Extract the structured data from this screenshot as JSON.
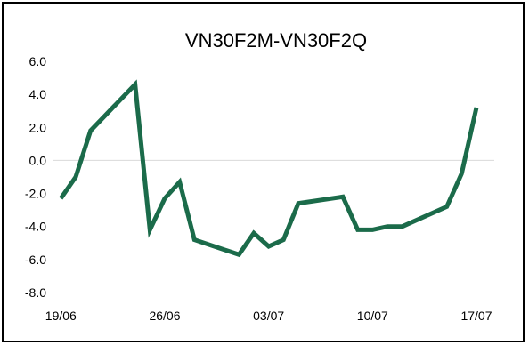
{
  "chart_data": {
    "type": "line",
    "title": "VN30F2M-VN30F2Q",
    "xlabel": "",
    "ylabel": "",
    "ylim": [
      -8.0,
      6.0
    ],
    "yticks": [
      "6.0",
      "4.0",
      "2.0",
      "0.0",
      "-2.0",
      "-4.0",
      "-6.0",
      "-8.0"
    ],
    "ytick_values": [
      6,
      4,
      2,
      0,
      -2,
      -4,
      -6,
      -8
    ],
    "xticks": [
      "19/06",
      "26/06",
      "03/07",
      "10/07",
      "17/07"
    ],
    "xtick_days": [
      0,
      7,
      14,
      21,
      28
    ],
    "xlim_days": [
      -0.5,
      29.2
    ],
    "grid": "zero-line only",
    "legend": "none",
    "line_color": "#1b6b4a",
    "series": [
      {
        "x": [
          "19/06",
          "20/06",
          "21/06",
          "24/06",
          "25/06",
          "26/06",
          "27/06",
          "28/06",
          "01/07",
          "02/07",
          "03/07",
          "04/07",
          "05/07",
          "08/07",
          "09/07",
          "10/07",
          "11/07",
          "12/07",
          "15/07",
          "16/07",
          "17/07"
        ],
        "x_days": [
          0,
          1,
          2,
          5,
          6,
          7,
          8,
          9,
          12,
          13,
          14,
          15,
          16,
          19,
          20,
          21,
          22,
          23,
          26,
          27,
          28
        ],
        "values": [
          -2.3,
          -1.0,
          1.8,
          4.6,
          -4.2,
          -2.3,
          -1.3,
          -4.8,
          -5.7,
          -4.4,
          -5.2,
          -4.8,
          -2.6,
          -2.2,
          -4.2,
          -4.2,
          -4.0,
          -4.0,
          -2.8,
          -0.8,
          3.2
        ]
      }
    ]
  }
}
